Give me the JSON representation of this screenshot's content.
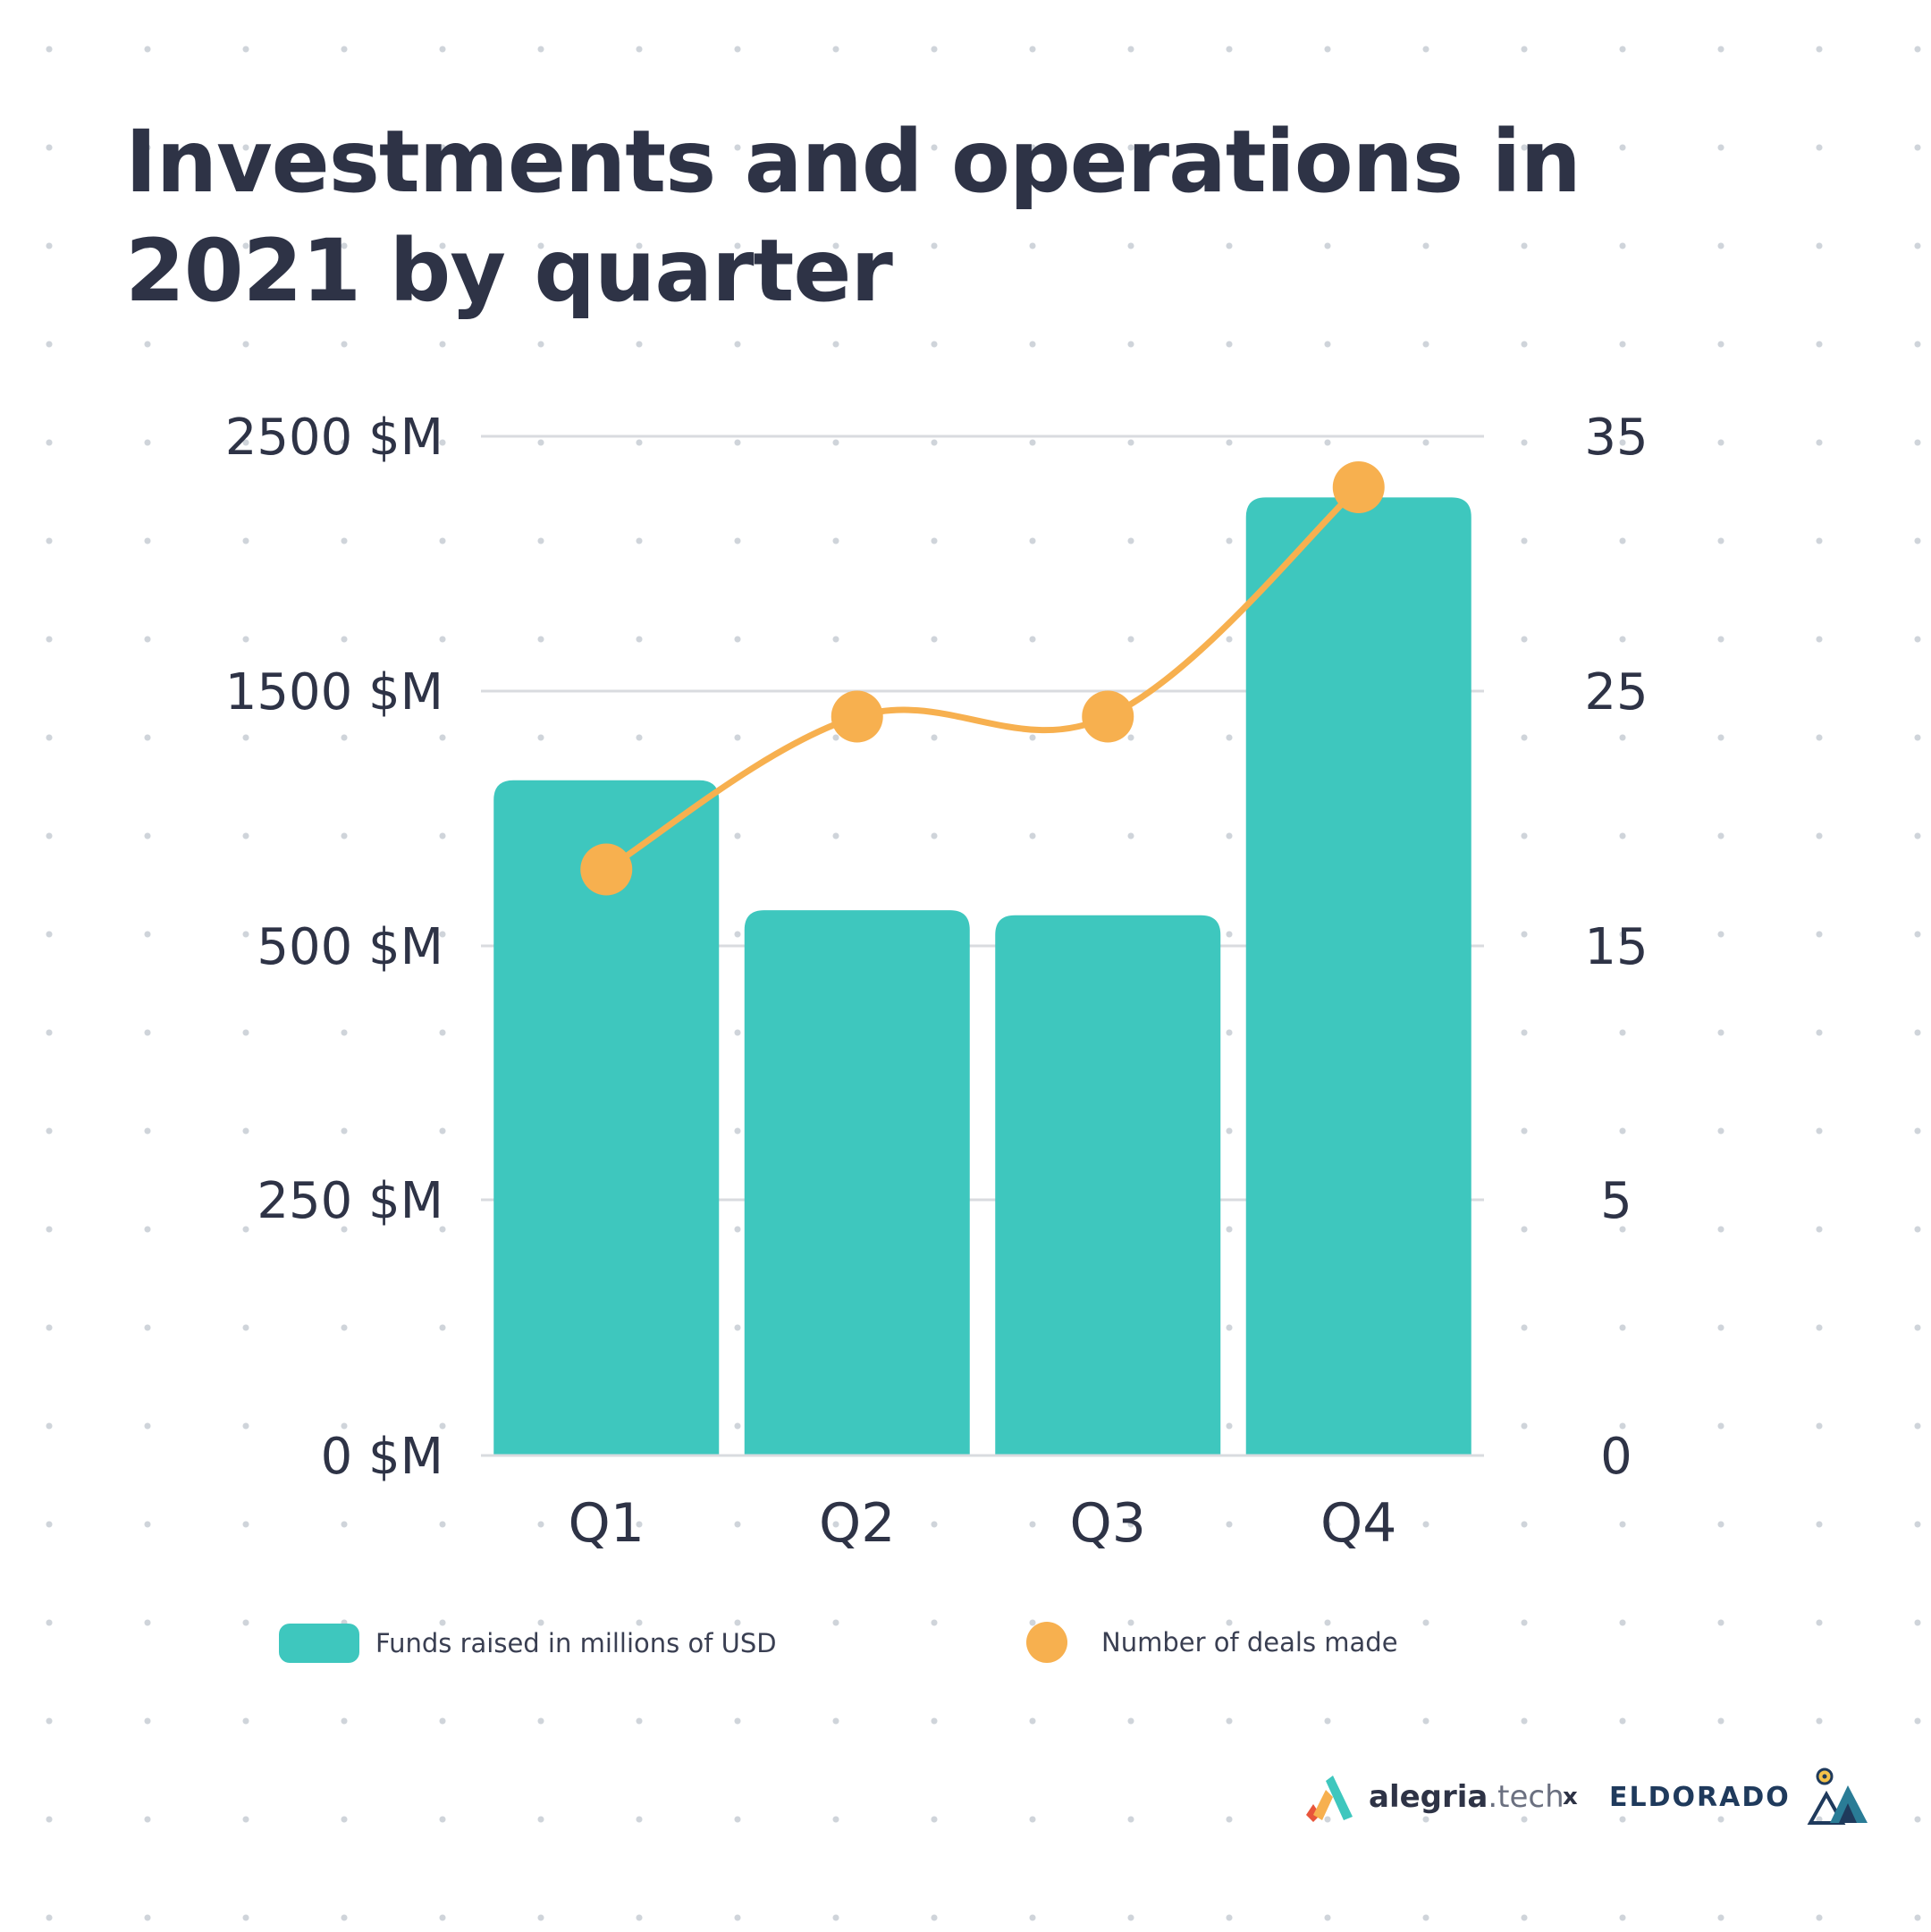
{
  "title": "Investments and operations in 2021 by quarter",
  "legend": {
    "bars_label": "Funds raised in millions of USD",
    "line_label": "Number of deals made"
  },
  "branding": {
    "alegria_bold": "alegria",
    "alegria_light": ".tech",
    "separator": "x",
    "eldorado": "ELDORADO"
  },
  "colors": {
    "bars": "#3ec7be",
    "line": "#f7b04f",
    "grid": "#d9dbdf",
    "text": "#2e3346"
  },
  "chart_data": {
    "type": "bar",
    "categories": [
      "Q1",
      "Q2",
      "Q3",
      "Q4"
    ],
    "left_axis": {
      "ticks": [
        "0 $M",
        "250 $M",
        "500 $M",
        "1500 $M",
        "2500 $M"
      ]
    },
    "right_axis": {
      "ticks": [
        "0",
        "5",
        "15",
        "25",
        "35"
      ]
    },
    "series": [
      {
        "name": "Funds raised in millions of USD",
        "type": "bar",
        "axis": "left",
        "values": [
          1150,
          640,
          620,
          2260
        ]
      },
      {
        "name": "Number of deals made",
        "type": "line",
        "axis": "right",
        "values": [
          18,
          24,
          24,
          33
        ]
      }
    ],
    "grid": true,
    "legend_position": "bottom"
  }
}
